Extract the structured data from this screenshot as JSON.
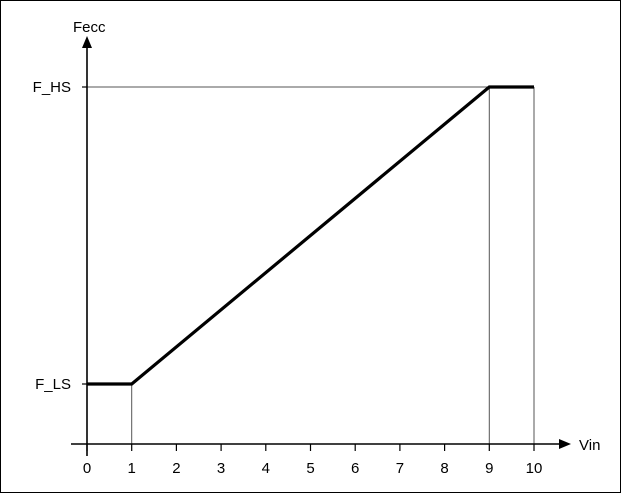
{
  "chart_data": {
    "type": "line",
    "title": "",
    "xlabel": "Vin",
    "ylabel": "Fecc",
    "xlim": [
      0,
      10
    ],
    "x_ticks": [
      "0",
      "1",
      "2",
      "3",
      "4",
      "5",
      "6",
      "7",
      "8",
      "9",
      "10"
    ],
    "y_tick_labels": [
      "F_LS",
      "F_HS"
    ],
    "grid": false,
    "series": [
      {
        "x": [
          0,
          1,
          9,
          10
        ],
        "y": [
          "F_LS",
          "F_LS",
          "F_HS",
          "F_HS"
        ]
      }
    ],
    "reference_lines": {
      "horizontal": [
        "F_HS"
      ],
      "vertical": [
        1,
        9,
        10
      ]
    },
    "colors": {
      "line": "#000000",
      "axis": "#000000",
      "guide": "#555555"
    }
  }
}
